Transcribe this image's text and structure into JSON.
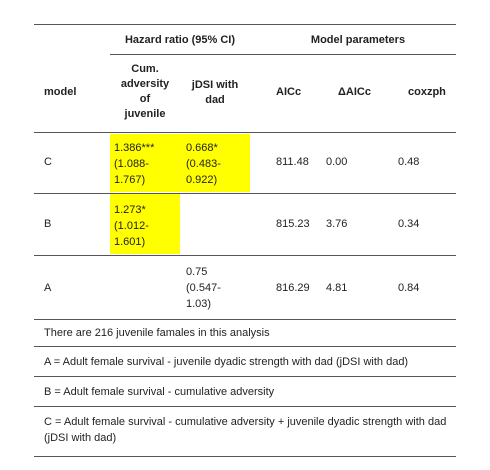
{
  "colors": {
    "highlight": "#ffff00",
    "rule": "#555555"
  },
  "header": {
    "group_hazard": "Hazard ratio (95% CI)",
    "group_model": "Model parameters",
    "col_model": "model",
    "col_cum": [
      "Cum.",
      "adversity",
      "of",
      "juvenile"
    ],
    "col_jdsi": [
      "jDSI with",
      "dad"
    ],
    "col_aicc": "AICc",
    "col_daicc": "ΔAICc",
    "col_coxzph": "coxzph"
  },
  "rows": [
    {
      "model": "C",
      "cum": [
        "1.386***",
        "(1.088-",
        "1.767)"
      ],
      "jdsi": [
        "0.668*",
        "(0.483-",
        "0.922)"
      ],
      "aicc": "811.48",
      "daicc": "0.00",
      "coxzph": "0.48"
    },
    {
      "model": "B",
      "cum": [
        "1.273*",
        "(1.012-",
        "1.601)"
      ],
      "jdsi": [],
      "aicc": "815.23",
      "daicc": "3.76",
      "coxzph": "0.34"
    },
    {
      "model": "A",
      "cum": [],
      "jdsi": [
        "0.75",
        "(0.547-",
        "1.03)"
      ],
      "aicc": "816.29",
      "daicc": "4.81",
      "coxzph": "0.84"
    }
  ],
  "notes": [
    "There are 216 juvenile famales in this analysis",
    "A = Adult female survival - juvenile dyadic strength with dad (jDSI with dad)",
    "B = Adult female survival - cumulative adversity",
    "C = Adult female survival - cumulative adversity + juvenile dyadic strength with dad (jDSI with dad)"
  ]
}
